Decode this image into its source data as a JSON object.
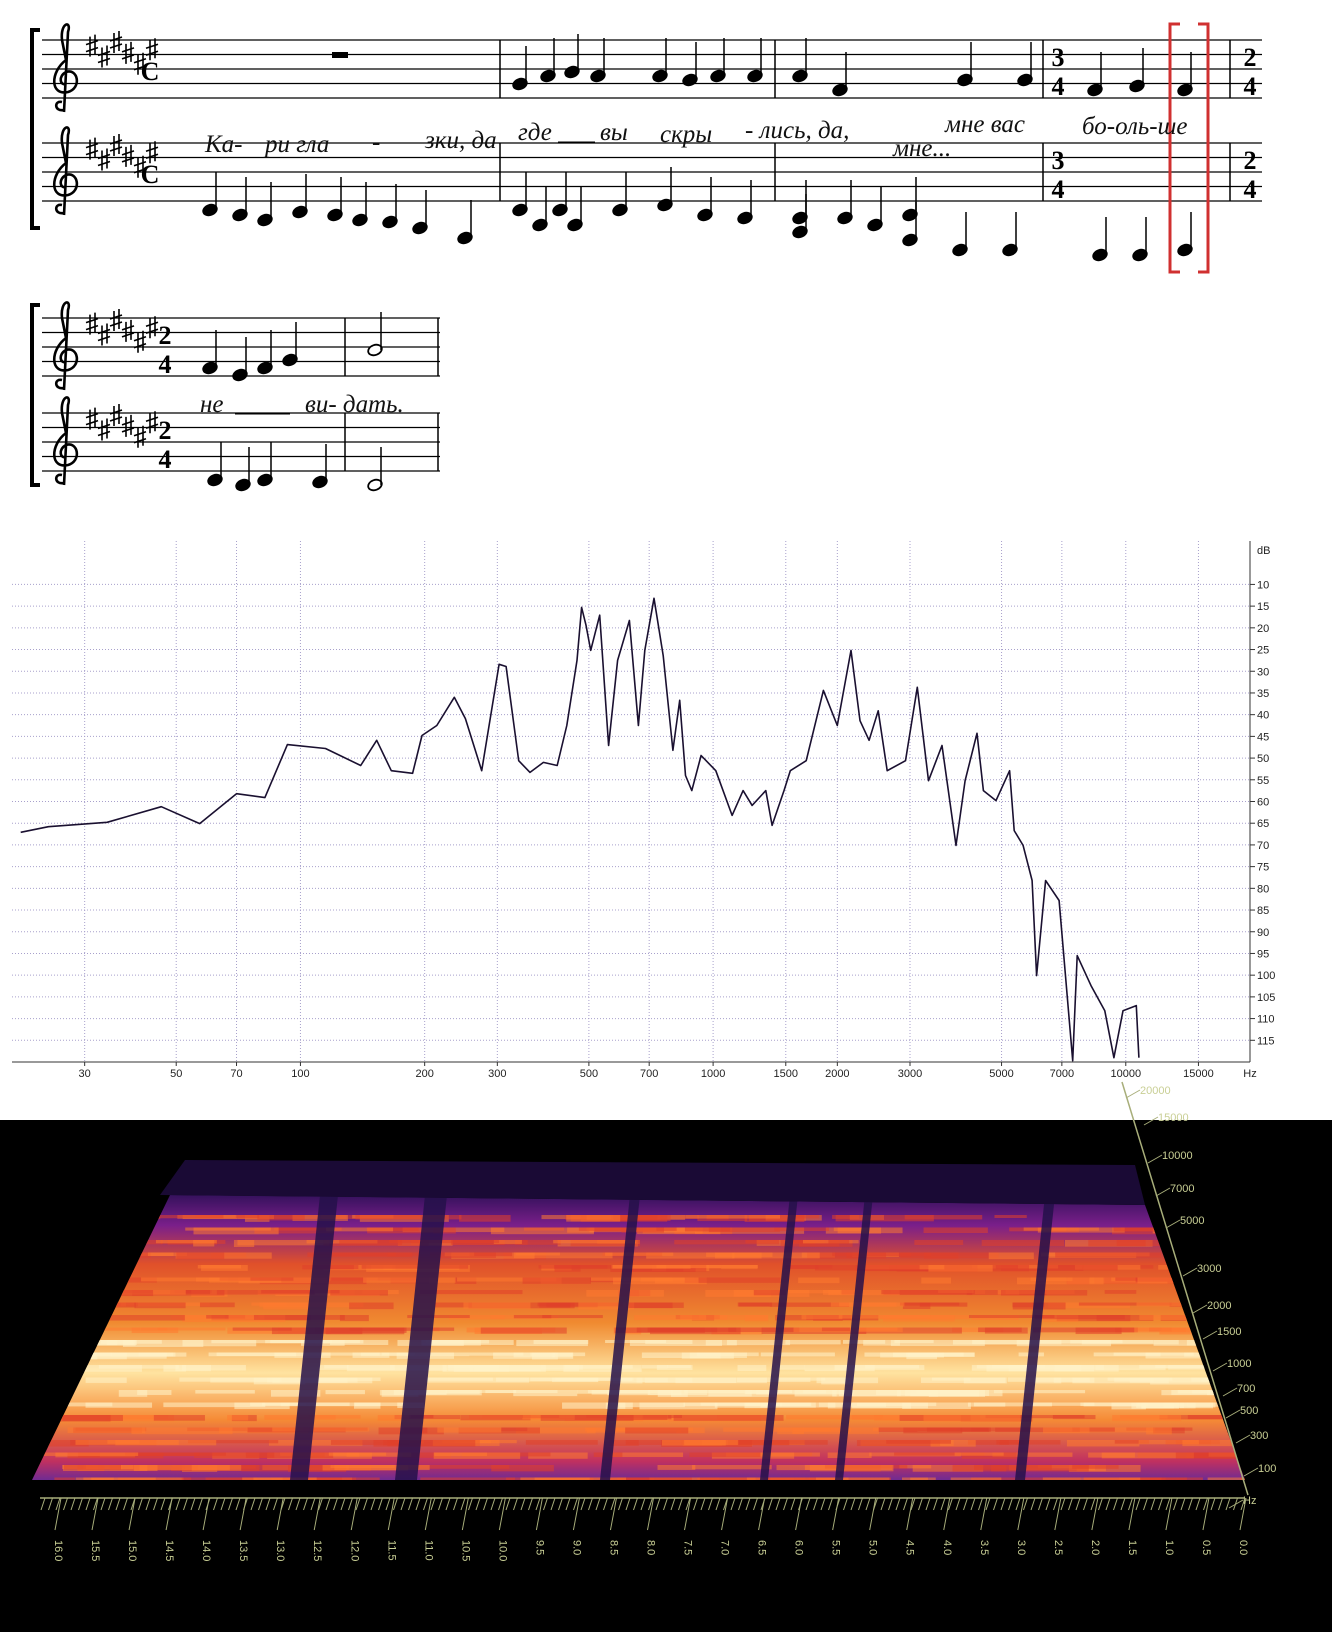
{
  "score": {
    "systems": [
      {
        "time_signatures": [
          "C",
          {
            "top": 3,
            "bottom": 4
          },
          {
            "top": 2,
            "bottom": 4
          }
        ],
        "lyrics": [
          "Ка-",
          "ри гла",
          "-",
          "зки, да",
          "где",
          "вы",
          "скры",
          "- лись, да,",
          "мне вас",
          "мне...",
          "бо-оль-ше"
        ]
      },
      {
        "time_signatures": [
          {
            "top": 2,
            "bottom": 4
          }
        ],
        "lyrics": [
          "не",
          "ви- дать."
        ]
      }
    ]
  },
  "chart_data": {
    "type": "line",
    "x_label": "Hz",
    "y_label": "dB",
    "log_x": true,
    "grid": true,
    "color": "#1a1030",
    "xlim": [
      20,
      20000
    ],
    "ylim": [
      120,
      0
    ],
    "xticks": [
      30,
      50,
      70,
      100,
      200,
      300,
      500,
      700,
      1000,
      1500,
      2000,
      3000,
      5000,
      7000,
      10000,
      15000
    ],
    "yticks": [
      10,
      15,
      20,
      25,
      30,
      35,
      40,
      45,
      50,
      55,
      60,
      65,
      70,
      75,
      80,
      85,
      90,
      95,
      100,
      105,
      110,
      115
    ],
    "x": [
      21,
      24.5,
      34,
      46,
      57,
      70,
      82,
      93,
      115,
      140,
      153,
      166,
      187,
      197,
      214,
      236,
      251,
      275,
      303,
      315,
      338,
      360,
      388,
      419,
      442,
      468,
      480,
      492,
      505,
      531,
      558,
      587,
      627,
      659,
      683,
      719,
      757,
      799,
      830,
      857,
      888,
      935,
      1015,
      1112,
      1182,
      1243,
      1342,
      1390,
      1485,
      1538,
      1681,
      1850,
      2000,
      2158,
      2270,
      2388,
      2512,
      2642,
      2925,
      3124,
      3327,
      3586,
      3877,
      4079,
      4360,
      4519,
      4848,
      5231,
      5365,
      5640,
      5930,
      6080,
      6393,
      6892,
      7438,
      7627,
      8235,
      8894,
      9358,
      9845,
      10605,
      10760
    ],
    "values": [
      67.1,
      65.8,
      64.8,
      61.2,
      65.1,
      58.2,
      59.1,
      46.9,
      47.8,
      51.7,
      45.9,
      52.9,
      53.5,
      44.8,
      42.5,
      36,
      40.9,
      52.9,
      28.4,
      28.9,
      50.6,
      53.3,
      51,
      51.7,
      42.5,
      27.5,
      15.3,
      19.4,
      25.2,
      17.1,
      47.1,
      27.5,
      18.3,
      42.5,
      25.2,
      13.2,
      26.4,
      48.2,
      36.7,
      54,
      57.5,
      49.4,
      52.9,
      63.2,
      57.5,
      60.9,
      57.5,
      65.5,
      57.5,
      52.9,
      50.6,
      34.4,
      42.5,
      25.2,
      41.4,
      45.9,
      39.1,
      52.9,
      50.6,
      33.7,
      55.2,
      47.1,
      70.1,
      55.2,
      44.3,
      57.5,
      59.8,
      52.9,
      66.7,
      70.1,
      78.2,
      100.1,
      78.2,
      82.8,
      119.7,
      95.5,
      102.4,
      108.2,
      119,
      108.2,
      107,
      119
    ]
  },
  "spectrogram": {
    "frequency_labels": [
      "20000",
      "15000",
      "10000",
      "7000",
      "5000",
      "3000",
      "2000",
      "1500",
      "1000",
      "700",
      "500",
      "300",
      "100",
      "Hz"
    ],
    "time_labels": [
      "16.0",
      "15.5",
      "15.0",
      "14.5",
      "14.0",
      "13.5",
      "13.0",
      "12.5",
      "12.0",
      "11.5",
      "11.0",
      "10.5",
      "10.0",
      "9.5",
      "9.0",
      "8.5",
      "8.0",
      "7.5",
      "7.0",
      "6.5",
      "6.0",
      "5.5",
      "5.0",
      "4.5",
      "4.0",
      "3.5",
      "3.0",
      "2.5",
      "2.0",
      "1.5",
      "1.0",
      "0.5",
      "0.0"
    ]
  }
}
